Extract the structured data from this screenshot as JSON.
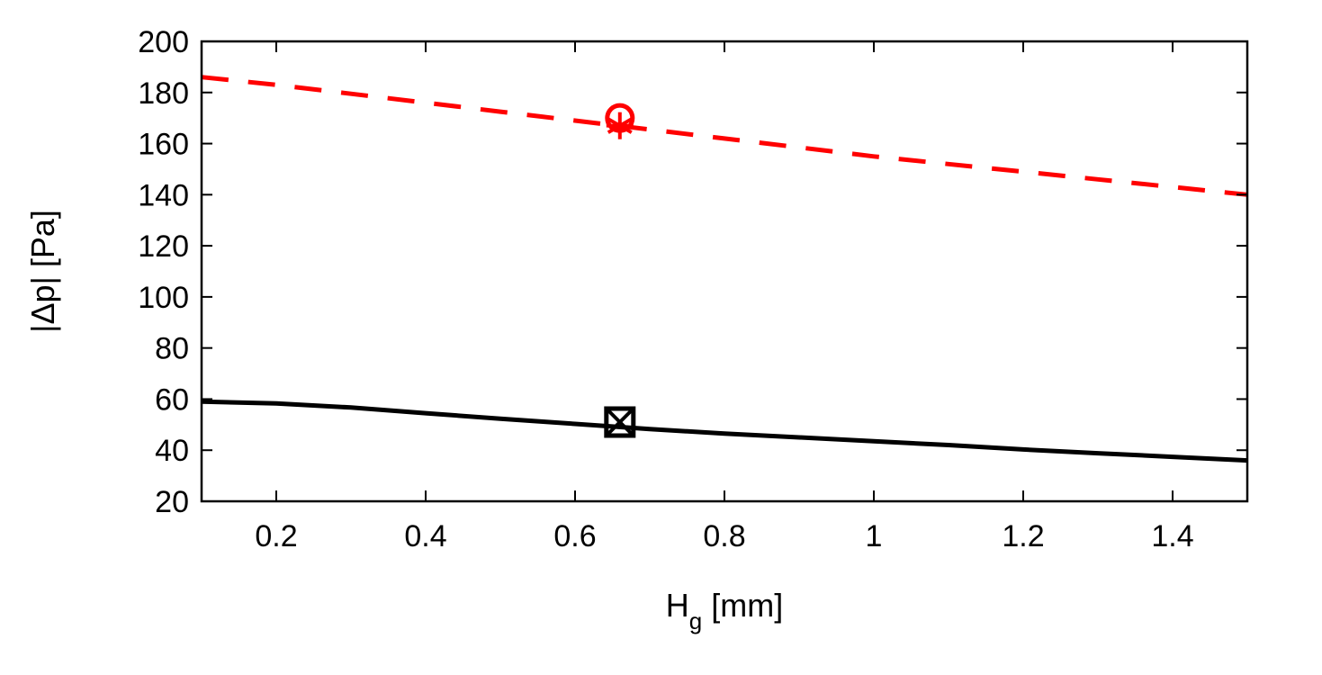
{
  "chart_data": {
    "type": "line",
    "xlabel": "H",
    "xlabel_sub": "g",
    "xlabel_unit": " [mm]",
    "ylabel": "|Δp| [Pa]",
    "xlim": [
      0.1,
      1.5
    ],
    "ylim": [
      20,
      200
    ],
    "xticks": [
      0.2,
      0.4,
      0.6,
      0.8,
      1,
      1.2,
      1.4
    ],
    "xtick_labels": [
      "0.2",
      "0.4",
      "0.6",
      "0.8",
      "1",
      "1.2",
      "1.4"
    ],
    "yticks": [
      20,
      40,
      60,
      80,
      100,
      120,
      140,
      160,
      180,
      200
    ],
    "ytick_labels": [
      "20",
      "40",
      "60",
      "80",
      "100",
      "120",
      "140",
      "160",
      "180",
      "200"
    ],
    "grid": false,
    "series": [
      {
        "color": "#ff0000",
        "style": "dashed",
        "x": [
          0.1,
          0.2,
          0.3,
          0.4,
          0.5,
          0.6,
          0.7,
          0.8,
          0.9,
          1.0,
          1.1,
          1.2,
          1.3,
          1.4,
          1.5
        ],
        "y": [
          186,
          183,
          179.5,
          176,
          172.5,
          169,
          165.5,
          162,
          158.5,
          155,
          152,
          149,
          146,
          143,
          140
        ]
      },
      {
        "color": "#000000",
        "style": "solid",
        "x": [
          0.1,
          0.2,
          0.3,
          0.4,
          0.5,
          0.6,
          0.7,
          0.8,
          0.9,
          1.0,
          1.1,
          1.2,
          1.3,
          1.4,
          1.5
        ],
        "y": [
          59,
          58.3,
          56.7,
          54.5,
          52.3,
          50.3,
          48.3,
          46.5,
          45,
          43.5,
          42,
          40.3,
          38.8,
          37.4,
          36
        ]
      }
    ],
    "markers": [
      {
        "shape": "circle",
        "x": 0.66,
        "y": 170,
        "color": "#ff0000"
      },
      {
        "shape": "asterisk",
        "x": 0.66,
        "y": 167,
        "color": "#ff0000"
      },
      {
        "shape": "square",
        "x": 0.66,
        "y": 51,
        "color": "#000000"
      },
      {
        "shape": "cross",
        "x": 0.66,
        "y": 51,
        "color": "#000000"
      }
    ]
  }
}
